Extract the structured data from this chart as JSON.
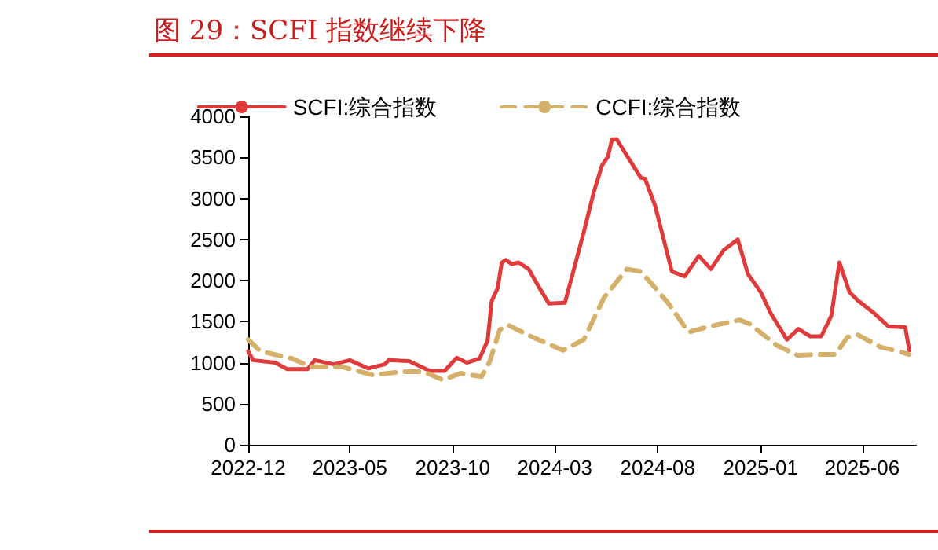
{
  "chart_data": {
    "type": "line",
    "title": "图 29：SCFI 指数继续下降",
    "xlim": [
      "2022-12-01",
      "2025-08-20"
    ],
    "xticks": [
      "2022-12",
      "2023-05",
      "2023-10",
      "2024-03",
      "2024-08",
      "2025-01",
      "2025-06"
    ],
    "ylim": [
      0,
      4000
    ],
    "yticks": [
      0,
      500,
      1000,
      1500,
      2000,
      2500,
      3000,
      3500,
      4000
    ],
    "grid": false,
    "legend": "top",
    "marker": "none",
    "series": [
      {
        "name": "SCFI:综合指数",
        "color": "#e03a3a",
        "line_style": "solid",
        "x": [
          "2022-12-01",
          "2022-12-08",
          "2023-01-10",
          "2023-01-28",
          "2023-02-27",
          "2023-03-10",
          "2023-04-07",
          "2023-05-01",
          "2023-05-28",
          "2023-06-22",
          "2023-06-28",
          "2023-07-28",
          "2023-08-28",
          "2023-09-19",
          "2023-10-07",
          "2023-10-22",
          "2023-11-10",
          "2023-11-22",
          "2023-11-28",
          "2023-12-07",
          "2023-12-13",
          "2023-12-19",
          "2023-12-28",
          "2024-01-07",
          "2024-01-22",
          "2024-02-07",
          "2024-02-21",
          "2024-03-16",
          "2024-04-13",
          "2024-04-28",
          "2024-05-10",
          "2024-05-19",
          "2024-05-25",
          "2024-06-01",
          "2024-06-13",
          "2024-07-07",
          "2024-07-13",
          "2024-07-28",
          "2024-08-22",
          "2024-09-10",
          "2024-10-01",
          "2024-10-19",
          "2024-11-07",
          "2024-11-28",
          "2024-12-13",
          "2025-01-01",
          "2025-01-16",
          "2025-02-09",
          "2025-02-26",
          "2025-03-16",
          "2025-04-01",
          "2025-04-16",
          "2025-04-28",
          "2025-05-13",
          "2025-05-25",
          "2025-06-19",
          "2025-07-10",
          "2025-08-04",
          "2025-08-10"
        ],
        "values": [
          1140,
          1030,
          1000,
          920,
          920,
          1030,
          980,
          1030,
          930,
          980,
          1030,
          1020,
          900,
          900,
          1060,
          1000,
          1050,
          1270,
          1750,
          1910,
          2220,
          2250,
          2200,
          2220,
          2140,
          1910,
          1720,
          1730,
          2590,
          3080,
          3400,
          3510,
          3720,
          3720,
          3560,
          3250,
          3240,
          2910,
          2110,
          2050,
          2300,
          2140,
          2370,
          2500,
          2080,
          1860,
          1600,
          1280,
          1410,
          1320,
          1320,
          1570,
          2220,
          1860,
          1760,
          1600,
          1440,
          1430,
          1150
        ]
      },
      {
        "name": "CCFI:综合指数",
        "color": "#d4b06a",
        "line_style": "dashed",
        "x": [
          "2022-12-01",
          "2022-12-19",
          "2023-02-04",
          "2023-03-04",
          "2023-04-19",
          "2023-06-04",
          "2023-07-19",
          "2023-08-19",
          "2023-09-16",
          "2023-10-13",
          "2023-11-13",
          "2023-11-25",
          "2023-12-10",
          "2023-12-22",
          "2024-01-28",
          "2024-03-13",
          "2024-04-13",
          "2024-05-13",
          "2024-06-16",
          "2024-07-07",
          "2024-08-16",
          "2024-09-16",
          "2024-10-16",
          "2024-12-01",
          "2024-12-16",
          "2025-01-25",
          "2025-02-25",
          "2025-03-25",
          "2025-04-22",
          "2025-05-10",
          "2025-05-25",
          "2025-06-28",
          "2025-07-19",
          "2025-08-10"
        ],
        "values": [
          1280,
          1140,
          1050,
          950,
          950,
          850,
          890,
          890,
          790,
          870,
          830,
          1010,
          1400,
          1460,
          1310,
          1150,
          1280,
          1790,
          2140,
          2110,
          1730,
          1370,
          1440,
          1520,
          1470,
          1210,
          1090,
          1100,
          1100,
          1310,
          1340,
          1190,
          1150,
          1100
        ]
      }
    ]
  }
}
